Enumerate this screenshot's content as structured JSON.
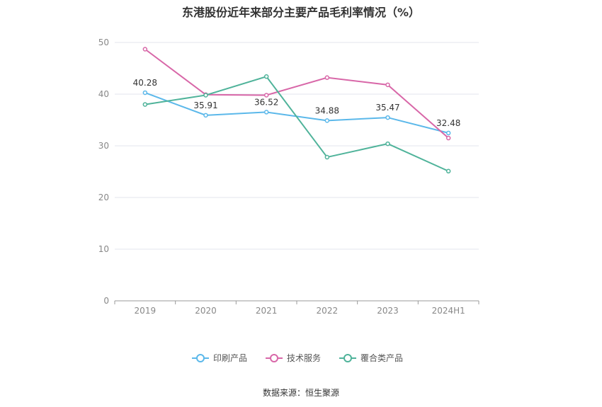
{
  "title": "东港股份近年来部分主要产品毛利率情况（%）",
  "source": "数据来源：恒生聚源",
  "chart_data": {
    "type": "line",
    "title": "东港股份近年来部分主要产品毛利率情况（%）",
    "categories": [
      "2019",
      "2020",
      "2021",
      "2022",
      "2023",
      "2024H1"
    ],
    "ylim": [
      0,
      50
    ],
    "yticks": [
      0,
      10,
      20,
      30,
      40,
      50
    ],
    "grid": true,
    "legend_position": "bottom",
    "series": [
      {
        "name": "印刷产品",
        "color": "#5bb8ea",
        "values": [
          40.28,
          35.91,
          36.52,
          34.88,
          35.47,
          32.48
        ],
        "show_labels": true
      },
      {
        "name": "技术服务",
        "color": "#d867a8",
        "values": [
          48.7,
          39.9,
          39.8,
          43.2,
          41.8,
          31.5
        ],
        "show_labels": false
      },
      {
        "name": "覆合类产品",
        "color": "#4fb39a",
        "values": [
          38.0,
          39.8,
          43.4,
          27.8,
          30.4,
          25.1
        ],
        "show_labels": false
      }
    ]
  }
}
